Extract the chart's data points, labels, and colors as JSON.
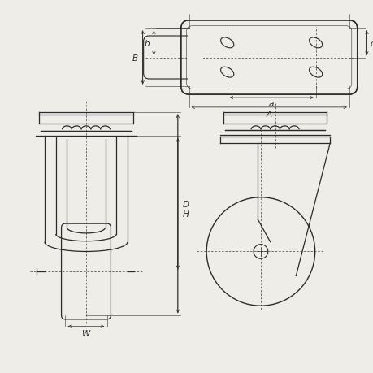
{
  "bg_color": "#eeede8",
  "line_color": "#2a2a2a",
  "fig_width": 4.6,
  "fig_height": 4.6,
  "dpi": 100,
  "labels": {
    "A": "A",
    "a": "a",
    "B": "B",
    "b": "b",
    "d": "d",
    "H": "H",
    "D": "D",
    "W": "W"
  }
}
